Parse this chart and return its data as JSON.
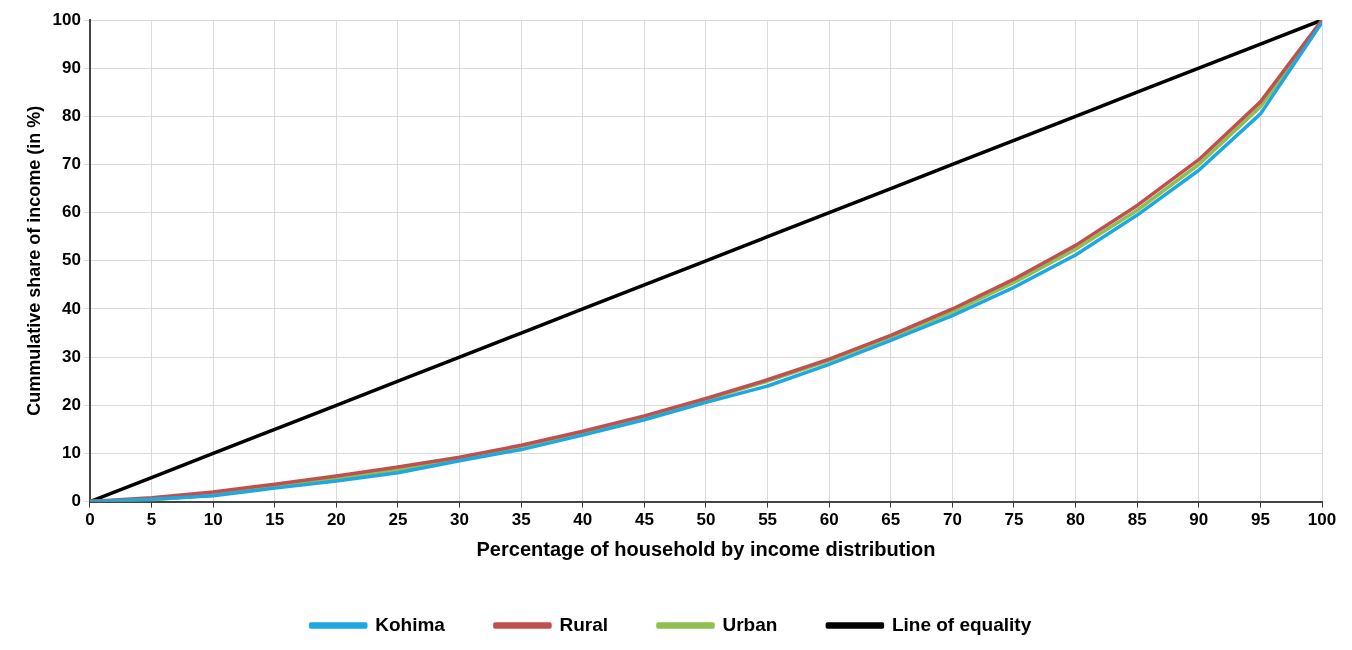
{
  "chart_data": {
    "type": "line",
    "xlabel": "Percentage of household by income distribution",
    "ylabel": "Cummulative share of income (in %)",
    "x": [
      0,
      5,
      10,
      15,
      20,
      25,
      30,
      35,
      40,
      45,
      50,
      55,
      60,
      65,
      70,
      75,
      80,
      85,
      90,
      95,
      100
    ],
    "series": [
      {
        "name": "Kohima",
        "color": "#1fa7df",
        "values": [
          0,
          0.5,
          1.2,
          2.8,
          4.3,
          6,
          8.5,
          10.8,
          13.8,
          17,
          20.6,
          24,
          28.5,
          33.5,
          38.6,
          44.5,
          51.2,
          59.5,
          68.8,
          80.5,
          99.5
        ]
      },
      {
        "name": "Rural",
        "color": "#c0504d",
        "values": [
          0,
          0.8,
          2,
          3.6,
          5.3,
          7.2,
          9.2,
          11.7,
          14.6,
          17.8,
          21.4,
          25.3,
          29.6,
          34.5,
          40,
          46.2,
          53.2,
          61.5,
          71,
          83,
          100
        ]
      },
      {
        "name": "Urban",
        "color": "#8fbf4f",
        "values": [
          0,
          0.4,
          1.3,
          3.2,
          4.8,
          6.6,
          9,
          11.5,
          14.4,
          17.6,
          21.2,
          25,
          29.3,
          34.2,
          39.4,
          45.5,
          52.4,
          60.5,
          70,
          82,
          99.5
        ]
      },
      {
        "name": "Line of equality",
        "color": "#000000",
        "values": [
          0,
          5,
          10,
          15,
          20,
          25,
          30,
          35,
          40,
          45,
          50,
          55,
          60,
          65,
          70,
          75,
          80,
          85,
          90,
          95,
          100
        ]
      }
    ],
    "xlim": [
      0,
      100
    ],
    "xticks": [
      0,
      5,
      10,
      15,
      20,
      25,
      30,
      35,
      40,
      45,
      50,
      55,
      60,
      65,
      70,
      75,
      80,
      85,
      90,
      95,
      100
    ],
    "ylim": [
      0,
      100
    ],
    "yticks": [
      0,
      10,
      20,
      30,
      40,
      50,
      60,
      70,
      80,
      90,
      100
    ],
    "grid": true,
    "legend": "bottom",
    "marker": "none",
    "line_style": "solid"
  }
}
